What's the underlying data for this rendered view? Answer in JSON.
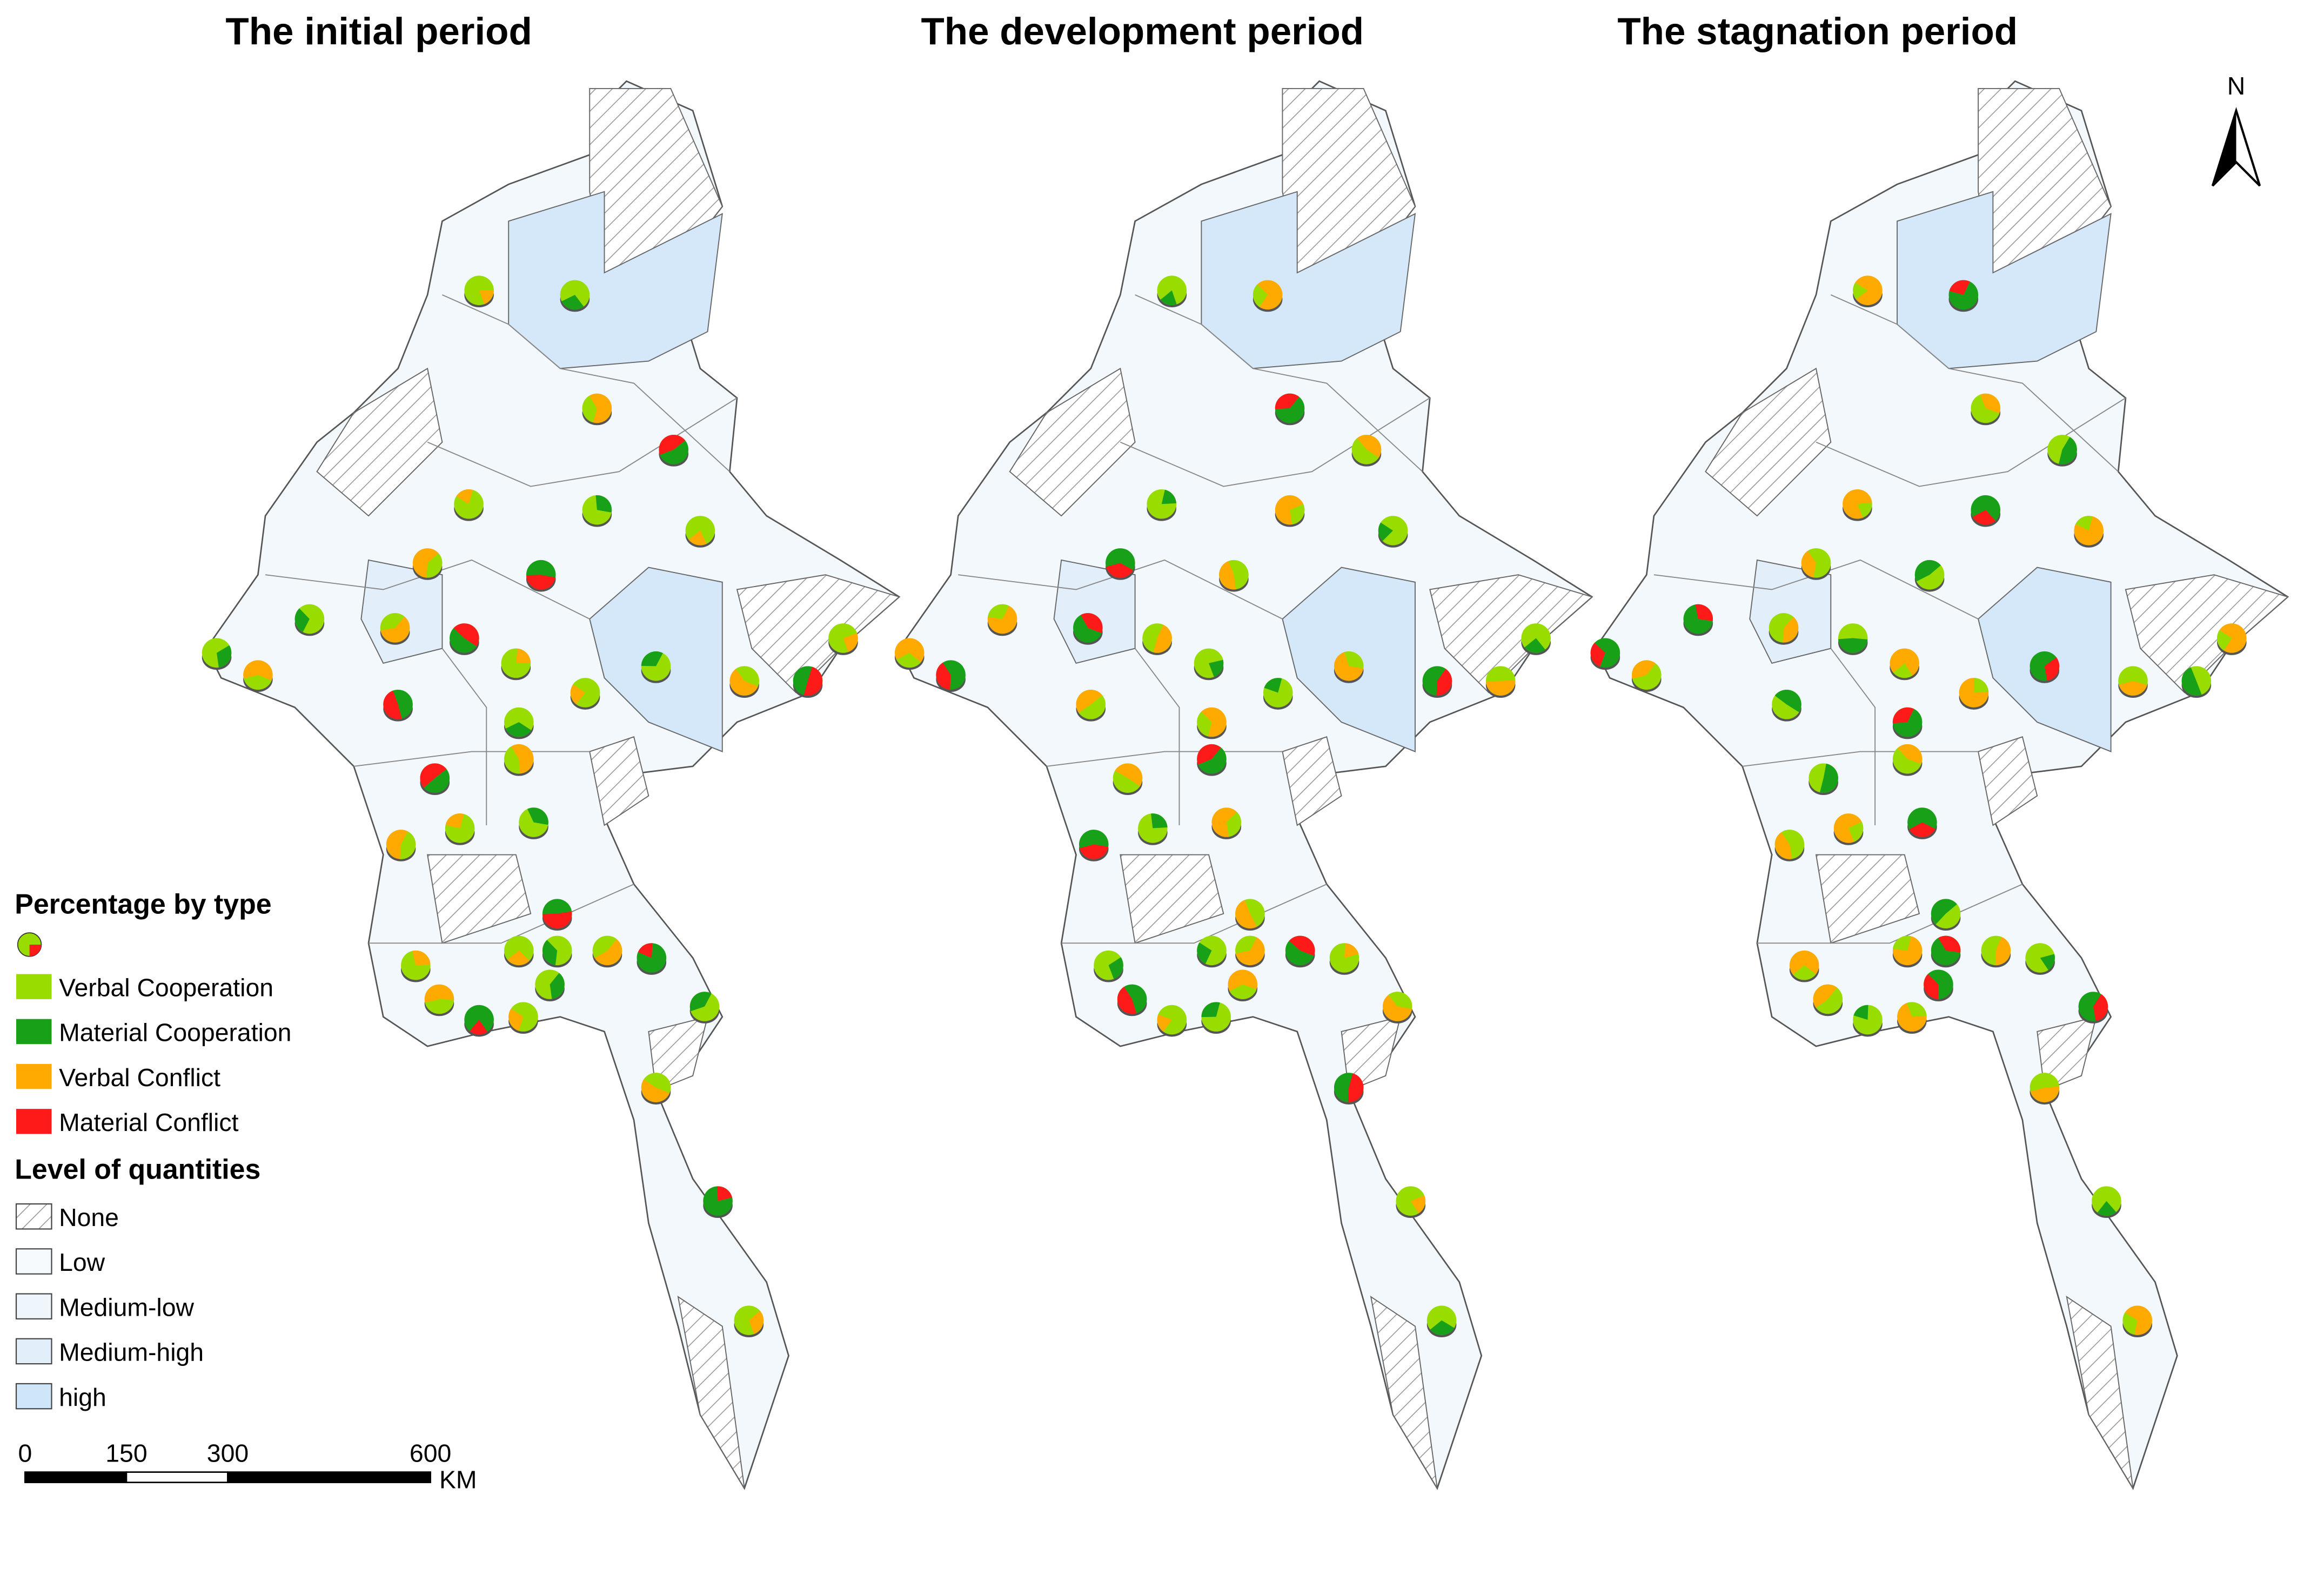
{
  "titles": [
    "The initial period",
    "The development period",
    "The stagnation period"
  ],
  "north": "N",
  "legend": {
    "type_title": "Percentage by type",
    "types": [
      {
        "label": "Verbal Cooperation",
        "color": "#99dd00"
      },
      {
        "label": "Material Cooperation",
        "color": "#18a018"
      },
      {
        "label": "Verbal Conflict",
        "color": "#ffaa00"
      },
      {
        "label": "Material Conflict",
        "color": "#ff1a1a"
      }
    ],
    "level_title": "Level of quantities",
    "levels": [
      {
        "label": "None",
        "fill": "url(#hatch)"
      },
      {
        "label": "Low",
        "fill": "#f7fafd"
      },
      {
        "label": "Medium-low",
        "fill": "#eef5fb"
      },
      {
        "label": "Medium-high",
        "fill": "#e2effb"
      },
      {
        "label": "high",
        "fill": "#cfe6f9"
      }
    ]
  },
  "scale_bar": {
    "ticks": [
      0,
      150,
      300,
      600
    ],
    "unit": "KM"
  }
}
